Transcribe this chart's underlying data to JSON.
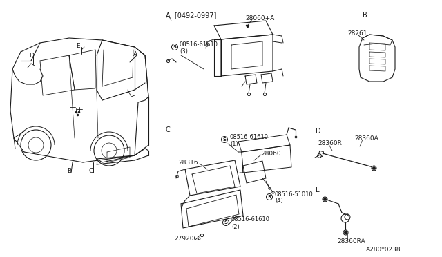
{
  "bg_color": "#ffffff",
  "line_color": "#1a1a1a",
  "text_color": "#1a1a1a",
  "fig_width": 6.4,
  "fig_height": 3.72,
  "dpi": 100,
  "labels": {
    "section_A": "A  [0492-0997]",
    "section_B": "B",
    "section_C": "C",
    "section_D": "D",
    "section_E": "E",
    "part_28060A": "28060+A",
    "part_28060": "28060",
    "part_28261": "28261",
    "part_28316": "28316",
    "part_27920G": "27920G",
    "part_28360A": "28360A",
    "part_28360R": "28360R",
    "part_28360RA": "28360RA",
    "screw_A": "08516-61610",
    "screw_A_qty": "(3)",
    "screw_C1": "08516-61610",
    "screw_C1_qty": "(1)",
    "screw_C2": "08516-51010",
    "screw_C2_qty": "(4)",
    "screw_C3": "08516-61610",
    "screw_C3_qty": "(2)",
    "label_D_car": "D",
    "label_E_car": "E",
    "label_A_car": "A",
    "label_B_car": "B",
    "label_C_car": "C",
    "footer": "A280*0238"
  }
}
